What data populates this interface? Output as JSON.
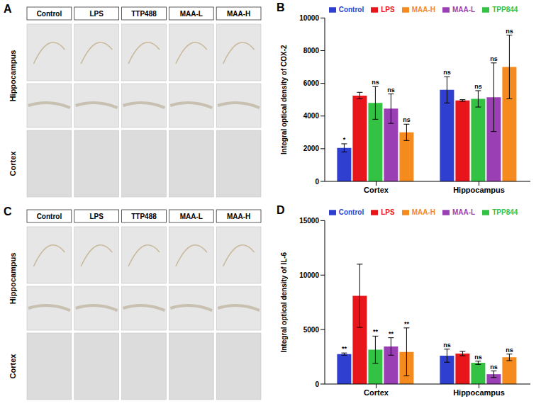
{
  "image_panels": [
    {
      "panel": "A",
      "columns": [
        "Control",
        "LPS",
        "TTP488",
        "MAA-L",
        "MAA-H"
      ],
      "rows": [
        "Hippocampus",
        "Cortex"
      ]
    },
    {
      "panel": "C",
      "columns": [
        "Control",
        "LPS",
        "TTP488",
        "MAA-L",
        "MAA-H"
      ],
      "rows": [
        "Hippocampus",
        "Cortex"
      ]
    }
  ],
  "chart_data": [
    {
      "panel": "B",
      "type": "bar",
      "ylabel": "Integral optical density of COX-2",
      "categories": [
        "Cortex",
        "Hippocampus"
      ],
      "ylim": [
        0,
        10000
      ],
      "yticks": [
        0,
        2000,
        4000,
        6000,
        8000,
        10000
      ],
      "grid": false,
      "legend": "top",
      "series": [
        {
          "name": "Control",
          "color": "#2f3fcf",
          "values": [
            2050,
            5600
          ],
          "errors": [
            250,
            800
          ],
          "significance": [
            "*",
            "ns"
          ]
        },
        {
          "name": "LPS",
          "color": "#e8161b",
          "values": [
            5250,
            4950
          ],
          "errors": [
            200,
            50
          ],
          "significance": [
            null,
            null
          ]
        },
        {
          "name": "TPP844",
          "color": "#33c244",
          "values": [
            4800,
            5050
          ],
          "errors": [
            1000,
            500
          ],
          "significance": [
            "ns",
            "ns"
          ]
        },
        {
          "name": "MAA-L",
          "color": "#9b3fb5",
          "values": [
            4450,
            5150
          ],
          "errors": [
            900,
            2100
          ],
          "significance": [
            "ns",
            "ns"
          ]
        },
        {
          "name": "MAA-H",
          "color": "#f58a1e",
          "values": [
            3000,
            7000
          ],
          "errors": [
            500,
            1950
          ],
          "significance": [
            "ns",
            "ns"
          ]
        }
      ]
    },
    {
      "panel": "D",
      "type": "bar",
      "ylabel": "Integral optical density of IL-6",
      "categories": [
        "Cortex",
        "Hippocampus"
      ],
      "ylim": [
        0,
        15000
      ],
      "yticks": [
        0,
        5000,
        10000,
        15000
      ],
      "grid": false,
      "legend": "top",
      "series": [
        {
          "name": "Control",
          "color": "#2f3fcf",
          "values": [
            2750,
            2600
          ],
          "errors": [
            100,
            600
          ],
          "significance": [
            "**",
            "ns"
          ]
        },
        {
          "name": "LPS",
          "color": "#e8161b",
          "values": [
            8100,
            2800
          ],
          "errors": [
            2900,
            200
          ],
          "significance": [
            null,
            null
          ]
        },
        {
          "name": "TPP844",
          "color": "#33c244",
          "values": [
            3150,
            1950
          ],
          "errors": [
            1250,
            150
          ],
          "significance": [
            "**",
            "ns"
          ]
        },
        {
          "name": "MAA-L",
          "color": "#9b3fb5",
          "values": [
            3450,
            900
          ],
          "errors": [
            800,
            300
          ],
          "significance": [
            "**",
            "ns"
          ]
        },
        {
          "name": "MAA-H",
          "color": "#f58a1e",
          "values": [
            2950,
            2450
          ],
          "errors": [
            2200,
            300
          ],
          "significance": [
            "**",
            "ns"
          ]
        }
      ]
    }
  ]
}
